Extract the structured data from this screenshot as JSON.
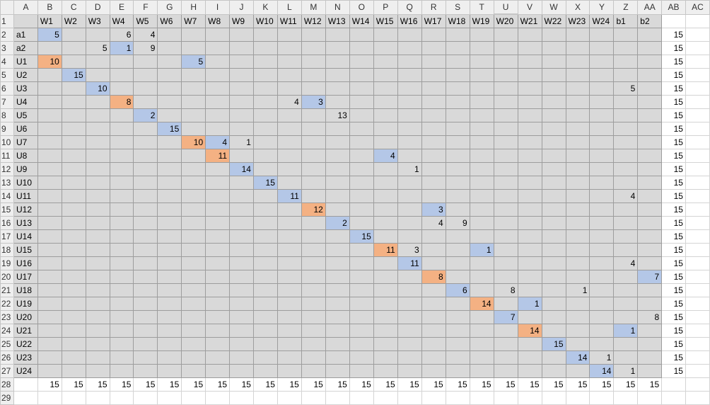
{
  "columns": [
    "A",
    "B",
    "C",
    "D",
    "E",
    "F",
    "G",
    "H",
    "I",
    "J",
    "K",
    "L",
    "M",
    "N",
    "O",
    "P",
    "Q",
    "R",
    "S",
    "T",
    "U",
    "V",
    "W",
    "X",
    "Y",
    "Z",
    "AA",
    "AB",
    "AC"
  ],
  "selected_column": "U",
  "colors": {
    "blue_fill": "#b4c7e7",
    "orange_fill": "#f4b183",
    "grey_fill": "#d9d9d9",
    "header_green": "#217346"
  },
  "rows": [
    {
      "n": "1",
      "cells": [
        "",
        "W1",
        "W2",
        "W3",
        "W4",
        "W5",
        "W6",
        "W7",
        "W8",
        "W9",
        "W10",
        "W11",
        "W12",
        "W13",
        "W14",
        "W15",
        "W16",
        "W17",
        "W18",
        "W19",
        "W20",
        "W21",
        "W22",
        "W23",
        "W24",
        "b1",
        "b2",
        "",
        ""
      ]
    },
    {
      "n": "2",
      "cells": [
        "a1",
        "5",
        "",
        "",
        "6",
        "4",
        "",
        "",
        "",
        "",
        "",
        "",
        "",
        "",
        "",
        "",
        "",
        "",
        "",
        "",
        "",
        "",
        "",
        "",
        "",
        "",
        "",
        "15",
        ""
      ]
    },
    {
      "n": "3",
      "cells": [
        "a2",
        "",
        "",
        "5",
        "1",
        "9",
        "",
        "",
        "",
        "",
        "",
        "",
        "",
        "",
        "",
        "",
        "",
        "",
        "",
        "",
        "",
        "",
        "",
        "",
        "",
        "",
        "",
        "15",
        ""
      ]
    },
    {
      "n": "4",
      "cells": [
        "U1",
        "10",
        "",
        "",
        "",
        "",
        "",
        "5",
        "",
        "",
        "",
        "",
        "",
        "",
        "",
        "",
        "",
        "",
        "",
        "",
        "",
        "",
        "",
        "",
        "",
        "",
        "",
        "15",
        ""
      ]
    },
    {
      "n": "5",
      "cells": [
        "U2",
        "",
        "15",
        "",
        "",
        "",
        "",
        "",
        "",
        "",
        "",
        "",
        "",
        "",
        "",
        "",
        "",
        "",
        "",
        "",
        "",
        "",
        "",
        "",
        "",
        "",
        "",
        "15",
        ""
      ]
    },
    {
      "n": "6",
      "cells": [
        "U3",
        "",
        "",
        "10",
        "",
        "",
        "",
        "",
        "",
        "",
        "",
        "",
        "",
        "",
        "",
        "",
        "",
        "",
        "",
        "",
        "",
        "",
        "",
        "",
        "",
        "5",
        "",
        "15",
        ""
      ]
    },
    {
      "n": "7",
      "cells": [
        "U4",
        "",
        "",
        "",
        "8",
        "",
        "",
        "",
        "",
        "",
        "",
        "4",
        "3",
        "",
        "",
        "",
        "",
        "",
        "",
        "",
        "",
        "",
        "",
        "",
        "",
        "",
        "",
        "15",
        ""
      ]
    },
    {
      "n": "8",
      "cells": [
        "U5",
        "",
        "",
        "",
        "",
        "2",
        "",
        "",
        "",
        "",
        "",
        "",
        "",
        "13",
        "",
        "",
        "",
        "",
        "",
        "",
        "",
        "",
        "",
        "",
        "",
        "",
        "",
        "15",
        ""
      ]
    },
    {
      "n": "9",
      "cells": [
        "U6",
        "",
        "",
        "",
        "",
        "",
        "15",
        "",
        "",
        "",
        "",
        "",
        "",
        "",
        "",
        "",
        "",
        "",
        "",
        "",
        "",
        "",
        "",
        "",
        "",
        "",
        "",
        "15",
        ""
      ]
    },
    {
      "n": "10",
      "cells": [
        "U7",
        "",
        "",
        "",
        "",
        "",
        "",
        "10",
        "4",
        "1",
        "",
        "",
        "",
        "",
        "",
        "",
        "",
        "",
        "",
        "",
        "",
        "",
        "",
        "",
        "",
        "",
        "",
        "15",
        ""
      ]
    },
    {
      "n": "11",
      "cells": [
        "U8",
        "",
        "",
        "",
        "",
        "",
        "",
        "",
        "11",
        "",
        "",
        "",
        "",
        "",
        "",
        "4",
        "",
        "",
        "",
        "",
        "",
        "",
        "",
        "",
        "",
        "",
        "",
        "15",
        ""
      ]
    },
    {
      "n": "12",
      "cells": [
        "U9",
        "",
        "",
        "",
        "",
        "",
        "",
        "",
        "",
        "14",
        "",
        "",
        "",
        "",
        "",
        "",
        "1",
        "",
        "",
        "",
        "",
        "",
        "",
        "",
        "",
        "",
        "",
        "15",
        ""
      ]
    },
    {
      "n": "13",
      "cells": [
        "U10",
        "",
        "",
        "",
        "",
        "",
        "",
        "",
        "",
        "",
        "15",
        "",
        "",
        "",
        "",
        "",
        "",
        "",
        "",
        "",
        "",
        "",
        "",
        "",
        "",
        "",
        "",
        "15",
        ""
      ]
    },
    {
      "n": "14",
      "cells": [
        "U11",
        "",
        "",
        "",
        "",
        "",
        "",
        "",
        "",
        "",
        "",
        "11",
        "",
        "",
        "",
        "",
        "",
        "",
        "",
        "",
        "",
        "",
        "",
        "",
        "",
        "4",
        "",
        "15",
        ""
      ]
    },
    {
      "n": "15",
      "cells": [
        "U12",
        "",
        "",
        "",
        "",
        "",
        "",
        "",
        "",
        "",
        "",
        "",
        "12",
        "",
        "",
        "",
        "",
        "3",
        "",
        "",
        "",
        "",
        "",
        "",
        "",
        "",
        "",
        "15",
        ""
      ]
    },
    {
      "n": "16",
      "cells": [
        "U13",
        "",
        "",
        "",
        "",
        "",
        "",
        "",
        "",
        "",
        "",
        "",
        "",
        "2",
        "",
        "",
        "",
        "4",
        "9",
        "",
        "",
        "",
        "",
        "",
        "",
        "",
        "",
        "15",
        ""
      ]
    },
    {
      "n": "17",
      "cells": [
        "U14",
        "",
        "",
        "",
        "",
        "",
        "",
        "",
        "",
        "",
        "",
        "",
        "",
        "",
        "15",
        "",
        "",
        "",
        "",
        "",
        "",
        "",
        "",
        "",
        "",
        "",
        "",
        "15",
        ""
      ]
    },
    {
      "n": "18",
      "cells": [
        "U15",
        "",
        "",
        "",
        "",
        "",
        "",
        "",
        "",
        "",
        "",
        "",
        "",
        "",
        "",
        "11",
        "3",
        "",
        "",
        "1",
        "",
        "",
        "",
        "",
        "",
        "",
        "",
        "15",
        ""
      ]
    },
    {
      "n": "19",
      "cells": [
        "U16",
        "",
        "",
        "",
        "",
        "",
        "",
        "",
        "",
        "",
        "",
        "",
        "",
        "",
        "",
        "",
        "11",
        "",
        "",
        "",
        "",
        "",
        "",
        "",
        "",
        "4",
        "",
        "15",
        ""
      ]
    },
    {
      "n": "20",
      "cells": [
        "U17",
        "",
        "",
        "",
        "",
        "",
        "",
        "",
        "",
        "",
        "",
        "",
        "",
        "",
        "",
        "",
        "",
        "8",
        "",
        "",
        "",
        "",
        "",
        "",
        "",
        "",
        "7",
        "15",
        ""
      ]
    },
    {
      "n": "21",
      "cells": [
        "U18",
        "",
        "",
        "",
        "",
        "",
        "",
        "",
        "",
        "",
        "",
        "",
        "",
        "",
        "",
        "",
        "",
        "",
        "6",
        "",
        "8",
        "",
        "",
        "1",
        "",
        "",
        "",
        "15",
        ""
      ]
    },
    {
      "n": "22",
      "cells": [
        "U19",
        "",
        "",
        "",
        "",
        "",
        "",
        "",
        "",
        "",
        "",
        "",
        "",
        "",
        "",
        "",
        "",
        "",
        "",
        "14",
        "",
        "1",
        "",
        "",
        "",
        "",
        "",
        "15",
        ""
      ]
    },
    {
      "n": "23",
      "cells": [
        "U20",
        "",
        "",
        "",
        "",
        "",
        "",
        "",
        "",
        "",
        "",
        "",
        "",
        "",
        "",
        "",
        "",
        "",
        "",
        "",
        "7",
        "",
        "",
        "",
        "",
        "",
        "8",
        "15",
        ""
      ]
    },
    {
      "n": "24",
      "cells": [
        "U21",
        "",
        "",
        "",
        "",
        "",
        "",
        "",
        "",
        "",
        "",
        "",
        "",
        "",
        "",
        "",
        "",
        "",
        "",
        "",
        "",
        "14",
        "",
        "",
        "",
        "1",
        "",
        "15",
        ""
      ]
    },
    {
      "n": "25",
      "cells": [
        "U22",
        "",
        "",
        "",
        "",
        "",
        "",
        "",
        "",
        "",
        "",
        "",
        "",
        "",
        "",
        "",
        "",
        "",
        "",
        "",
        "",
        "",
        "15",
        "",
        "",
        "",
        "",
        "15",
        ""
      ]
    },
    {
      "n": "26",
      "cells": [
        "U23",
        "",
        "",
        "",
        "",
        "",
        "",
        "",
        "",
        "",
        "",
        "",
        "",
        "",
        "",
        "",
        "",
        "",
        "",
        "",
        "",
        "",
        "",
        "14",
        "1",
        "",
        "",
        "15",
        ""
      ]
    },
    {
      "n": "27",
      "cells": [
        "U24",
        "",
        "",
        "",
        "",
        "",
        "",
        "",
        "",
        "",
        "",
        "",
        "",
        "",
        "",
        "",
        "",
        "",
        "",
        "",
        "",
        "",
        "",
        "",
        "14",
        "1",
        "",
        "15",
        ""
      ]
    },
    {
      "n": "28",
      "cells": [
        "",
        "15",
        "15",
        "15",
        "15",
        "15",
        "15",
        "15",
        "15",
        "15",
        "15",
        "15",
        "15",
        "15",
        "15",
        "15",
        "15",
        "15",
        "15",
        "15",
        "15",
        "15",
        "15",
        "15",
        "15",
        "15",
        "15",
        "",
        ""
      ]
    },
    {
      "n": "29",
      "cells": [
        "",
        "",
        "",
        "",
        "",
        "",
        "",
        "",
        "",
        "",
        "",
        "",
        "",
        "",
        "",
        "",
        "",
        "",
        "",
        "",
        "",
        "",
        "",
        "",
        "",
        "",
        "",
        "",
        ""
      ]
    }
  ],
  "highlights": {
    "blue": [
      "B2",
      "E3",
      "H4",
      "C5",
      "D6",
      "M7",
      "F8",
      "G9",
      "I10",
      "P11",
      "J12",
      "K13",
      "L14",
      "R15",
      "N16",
      "O17",
      "T18",
      "Q19",
      "AA20",
      "S21",
      "V22",
      "U23",
      "Z24",
      "W25",
      "X26",
      "Y27"
    ],
    "orange": [
      "B4",
      "E7",
      "H10",
      "I11",
      "M15",
      "P18",
      "R20",
      "T22",
      "V24"
    ]
  }
}
